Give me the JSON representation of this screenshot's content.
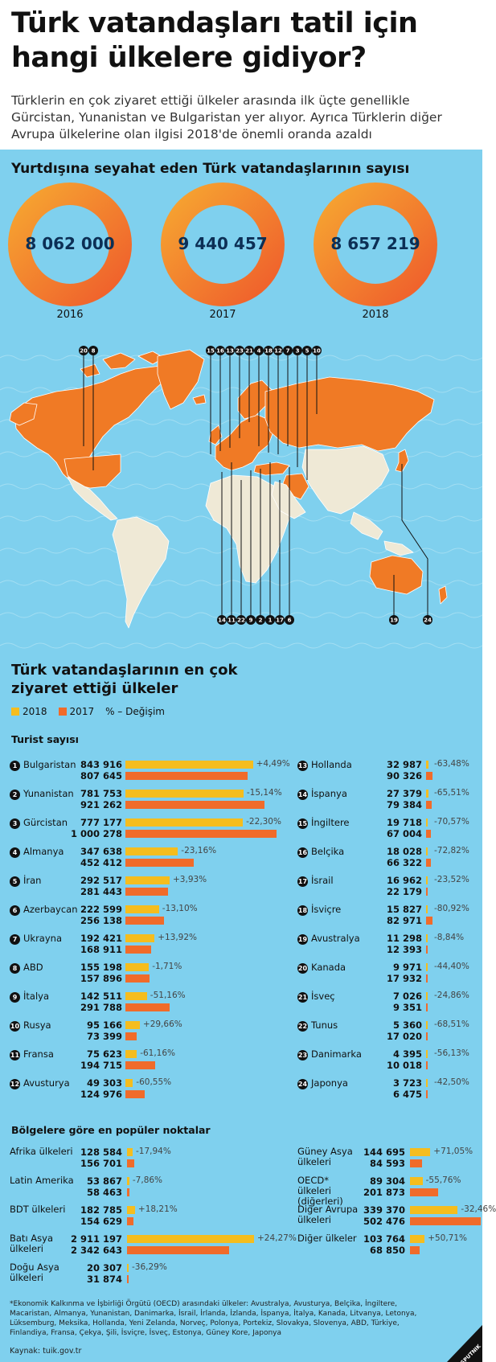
{
  "header": {
    "title": "Türk vatandaşları tatil için hangi ülkelere gidiyor?",
    "subtitle": "Türklerin en çok ziyaret ettiği ülkeler arasında ilk üçte genellikle Gürcistan, Yunanistan ve Bulgaristan yer alıyor. Ayrıca Türklerin diğer Avrupa ülkelerine olan ilgisi 2018'de önemli oranda azaldı"
  },
  "travelers": {
    "title": "Yurtdışına seyahat eden Türk vatandaşlarının sayısı",
    "items": [
      {
        "year": "2016",
        "value": "8 062 000"
      },
      {
        "year": "2017",
        "value": "9 440 457"
      },
      {
        "year": "2018",
        "value": "8 657 219"
      }
    ]
  },
  "map": {
    "top_numbers": [
      "20",
      "8",
      "15",
      "16",
      "13",
      "23",
      "21",
      "4",
      "18",
      "12",
      "7",
      "3",
      "5",
      "10"
    ],
    "bottom_numbers": [
      "14",
      "11",
      "22",
      "9",
      "2",
      "1",
      "17",
      "6",
      "19",
      "24"
    ]
  },
  "colors": {
    "y2018": "#f5bd1e",
    "y2017": "#f06b2a",
    "background": "#7fd0ee"
  },
  "chart_data": [
    {
      "type": "bar",
      "title": "Türk vatandaşlarının en çok ziyaret ettiği ülkeler",
      "subtitle": "Turist sayısı",
      "legend": {
        "y2018": "2018",
        "y2017": "2017",
        "pct": "% – Değişim"
      },
      "categories": [
        "Bulgaristan",
        "Yunanistan",
        "Gürcistan",
        "Almanya",
        "İran",
        "Azerbaycan",
        "Ukrayna",
        "ABD",
        "İtalya",
        "Rusya",
        "Fransa",
        "Avusturya",
        "Hollanda",
        "İspanya",
        "İngiltere",
        "Belçika",
        "İsrail",
        "İsviçre",
        "Avustralya",
        "Kanada",
        "İsveç",
        "Tunus",
        "Danimarka",
        "Japonya"
      ],
      "ranks": [
        "1",
        "2",
        "3",
        "4",
        "5",
        "6",
        "7",
        "8",
        "9",
        "10",
        "11",
        "12",
        "13",
        "14",
        "15",
        "16",
        "17",
        "18",
        "19",
        "20",
        "21",
        "22",
        "23",
        "24"
      ],
      "series": [
        {
          "name": "2018",
          "values": [
            843916,
            781753,
            777177,
            347638,
            292517,
            222599,
            192421,
            155198,
            142511,
            95166,
            75623,
            49303,
            32987,
            27379,
            19718,
            18028,
            16962,
            15827,
            11298,
            9971,
            7026,
            5360,
            4395,
            3723
          ]
        },
        {
          "name": "2017",
          "values": [
            807645,
            921262,
            1000278,
            452412,
            281443,
            256138,
            168911,
            157896,
            291788,
            73399,
            194715,
            124976,
            90326,
            79384,
            67004,
            66322,
            22179,
            82971,
            12393,
            17932,
            9351,
            17020,
            10018,
            6475
          ]
        }
      ],
      "labels_2018": [
        "843 916",
        "781 753",
        "777 177",
        "347 638",
        "292 517",
        "222 599",
        "192 421",
        "155 198",
        "142 511",
        "95 166",
        "75 623",
        "49 303",
        "32 987",
        "27 379",
        "19 718",
        "18 028",
        "16 962",
        "15 827",
        "11 298",
        "9 971",
        "7 026",
        "5 360",
        "4 395",
        "3 723"
      ],
      "labels_2017": [
        "807 645",
        "921 262",
        "1 000 278",
        "452 412",
        "281 443",
        "256 138",
        "168 911",
        "157 896",
        "291 788",
        "73 399",
        "194 715",
        "124 976",
        "90 326",
        "79 384",
        "67 004",
        "66 322",
        "22 179",
        "82 971",
        "12 393",
        "17 932",
        "9 351",
        "17 020",
        "10 018",
        "6 475"
      ],
      "change": [
        "+4,49%",
        "-15,14%",
        "-22,30%",
        "-23,16%",
        "+3,93%",
        "-13,10%",
        "+13,92%",
        "-1,71%",
        "-51,16%",
        "+29,66%",
        "-61,16%",
        "-60,55%",
        "-63,48%",
        "-65,51%",
        "-70,57%",
        "-72,82%",
        "-23,52%",
        "-80,92%",
        "-8,84%",
        "-44,40%",
        "-24,86%",
        "-68,51%",
        "-56,13%",
        "-42,50%"
      ]
    },
    {
      "type": "bar",
      "title": "Bölgelere göre en popüler noktalar",
      "categories": [
        "Afrika ülkeleri",
        "Latin Amerika",
        "BDT ülkeleri",
        "Batı Asya ülkeleri",
        "Doğu Asya ülkeleri",
        "Güney Asya ülkeleri",
        "OECD* ülkeleri (diğerleri)",
        "Diğer Avrupa ülkeleri",
        "Diğer ülkeler"
      ],
      "series": [
        {
          "name": "2018",
          "values": [
            128584,
            53867,
            182785,
            2911197,
            20307,
            144695,
            89304,
            339370,
            103764
          ]
        },
        {
          "name": "2017",
          "values": [
            156701,
            58463,
            154629,
            2342643,
            31874,
            84593,
            201873,
            502476,
            68850
          ]
        }
      ],
      "labels_2018": [
        "128 584",
        "53 867",
        "182 785",
        "2 911 197",
        "20 307",
        "144 695",
        "89 304",
        "339 370",
        "103 764"
      ],
      "labels_2017": [
        "156 701",
        "58 463",
        "154 629",
        "2 342 643",
        "31 874",
        "84 593",
        "201 873",
        "502 476",
        "68 850"
      ],
      "change": [
        "-17,94%",
        "-7,86%",
        "+18,21%",
        "+24,27%",
        "-36,29%",
        "+71,05%",
        "-55,76%",
        "-32,46%",
        "+50,71%"
      ]
    }
  ],
  "footnote": "*Ekonomik Kalkınma ve İşbirliği Örgütü (OECD) arasındaki ülkeler: Avustralya, Avusturya, Belçika, İngiltere, Macaristan, Almanya, Yunanistan, Danimarka, İsrail, İrlanda, İzlanda, İspanya, İtalya, Kanada, Litvanya, Letonya, Lüksemburg, Meksika, Hollanda, Yeni Zelanda, Norveç, Polonya, Portekiz, Slovakya, Slovenya, ABD, Türkiye, Finlandiya, Fransa, Çekya, Şili, İsviçre, İsveç, Estonya, Güney Kore, Japonya",
  "source": "Kaynak: tuik.gov.tr",
  "logo": {
    "text": "SPUTNIK"
  }
}
